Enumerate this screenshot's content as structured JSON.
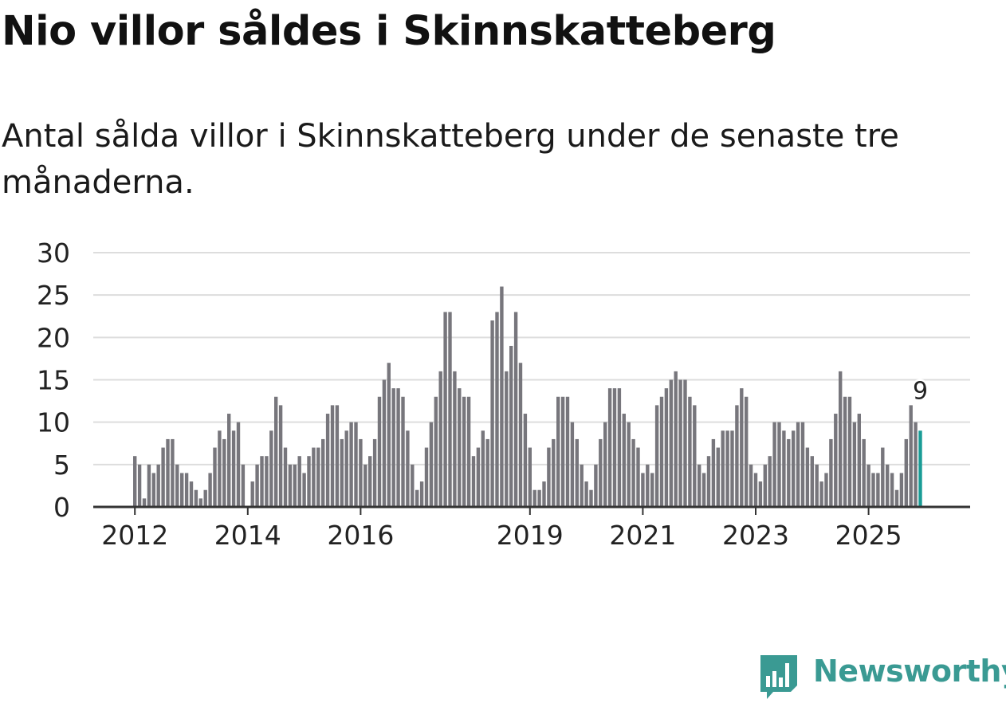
{
  "header": {
    "title": "Nio villor såldes i Skinnskatteberg",
    "subtitle": "Antal sålda villor i Skinnskatteberg under de senaste tre månaderna."
  },
  "brand": {
    "name": "Newsworthy"
  },
  "colors": {
    "bar": "#77767c",
    "highlight": "#1a9c96",
    "grid": "#dddddd",
    "axis": "#333333",
    "brand": "#3a9a93"
  },
  "chart_data": {
    "type": "bar",
    "title": "Nio villor såldes i Skinnskatteberg",
    "xlabel": "",
    "ylabel": "",
    "ylim": [
      0,
      30
    ],
    "yticks": [
      0,
      5,
      10,
      15,
      20,
      25,
      30
    ],
    "xticks": [
      "2012",
      "2014",
      "2016",
      "2019",
      "2021",
      "2023",
      "2025"
    ],
    "xtick_positions": [
      0,
      24,
      48,
      84,
      108,
      132,
      156
    ],
    "grid": true,
    "highlight_label": "9",
    "values": [
      6,
      5,
      1,
      5,
      4,
      5,
      7,
      8,
      8,
      5,
      4,
      4,
      3,
      2,
      1,
      2,
      4,
      7,
      9,
      8,
      11,
      9,
      10,
      5,
      0,
      3,
      5,
      6,
      6,
      9,
      13,
      12,
      7,
      5,
      5,
      6,
      4,
      6,
      7,
      7,
      8,
      11,
      12,
      12,
      8,
      9,
      10,
      10,
      8,
      5,
      6,
      8,
      13,
      15,
      17,
      14,
      14,
      13,
      9,
      5,
      2,
      3,
      7,
      10,
      13,
      16,
      23,
      23,
      16,
      14,
      13,
      13,
      6,
      7,
      9,
      8,
      22,
      23,
      26,
      16,
      19,
      23,
      17,
      11,
      7,
      2,
      2,
      3,
      7,
      8,
      13,
      13,
      13,
      10,
      8,
      5,
      3,
      2,
      5,
      8,
      10,
      14,
      14,
      14,
      11,
      10,
      8,
      7,
      4,
      5,
      4,
      12,
      13,
      14,
      15,
      16,
      15,
      15,
      13,
      12,
      5,
      4,
      6,
      8,
      7,
      9,
      9,
      9,
      12,
      14,
      13,
      5,
      4,
      3,
      5,
      6,
      10,
      10,
      9,
      8,
      9,
      10,
      10,
      7,
      6,
      5,
      3,
      4,
      8,
      11,
      16,
      13,
      13,
      10,
      11,
      8,
      5,
      4,
      4,
      7,
      5,
      4,
      2,
      4,
      8,
      12,
      10,
      9
    ]
  }
}
